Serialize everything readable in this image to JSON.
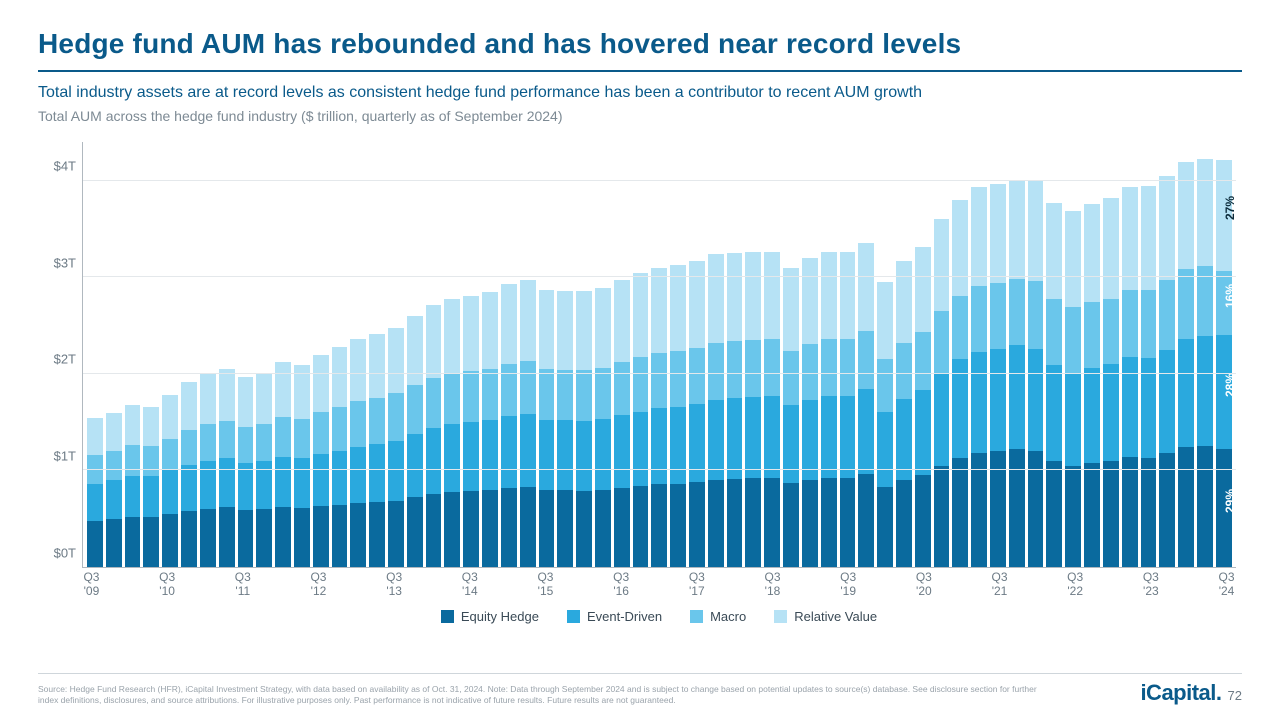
{
  "title": "Hedge fund AUM has rebounded and has hovered near record levels",
  "subtitle": "Total industry assets are at record levels as consistent hedge fund performance has been a contributor to recent AUM growth",
  "description": "Total AUM across the hedge fund industry ($ trillion, quarterly as of September 2024)",
  "chart": {
    "type": "stacked-bar",
    "ymax": 4.4,
    "yticks": [
      {
        "v": 0,
        "label": "$0T"
      },
      {
        "v": 1,
        "label": "$1T"
      },
      {
        "v": 2,
        "label": "$2T"
      },
      {
        "v": 3,
        "label": "$3T"
      },
      {
        "v": 4,
        "label": "$4T"
      }
    ],
    "series": [
      {
        "name": "Equity Hedge",
        "color": "#0a6a9e"
      },
      {
        "name": "Event-Driven",
        "color": "#2aa9de"
      },
      {
        "name": "Macro",
        "color": "#6ac6eb"
      },
      {
        "name": "Relative Value",
        "color": "#b6e2f5"
      }
    ],
    "data": [
      {
        "x": "Q3 '09",
        "v": [
          0.48,
          0.38,
          0.3,
          0.38
        ]
      },
      {
        "x": "Q4 '09",
        "v": [
          0.5,
          0.4,
          0.3,
          0.4
        ]
      },
      {
        "x": "Q1 '10",
        "v": [
          0.52,
          0.42,
          0.32,
          0.42
        ]
      },
      {
        "x": "Q2 '10",
        "v": [
          0.52,
          0.42,
          0.31,
          0.41
        ]
      },
      {
        "x": "Q3 '10",
        "v": [
          0.55,
          0.45,
          0.33,
          0.45
        ]
      },
      {
        "x": "Q4 '10",
        "v": [
          0.58,
          0.48,
          0.36,
          0.5
        ]
      },
      {
        "x": "Q1 '11",
        "v": [
          0.6,
          0.5,
          0.38,
          0.52
        ]
      },
      {
        "x": "Q2 '11",
        "v": [
          0.62,
          0.51,
          0.38,
          0.54
        ]
      },
      {
        "x": "Q3 '11",
        "v": [
          0.59,
          0.49,
          0.37,
          0.52
        ]
      },
      {
        "x": "Q4 '11",
        "v": [
          0.6,
          0.5,
          0.38,
          0.53
        ]
      },
      {
        "x": "Q1 '12",
        "v": [
          0.62,
          0.52,
          0.41,
          0.57
        ]
      },
      {
        "x": "Q2 '12",
        "v": [
          0.61,
          0.52,
          0.4,
          0.56
        ]
      },
      {
        "x": "Q3 '12",
        "v": [
          0.63,
          0.54,
          0.44,
          0.59
        ]
      },
      {
        "x": "Q4 '12",
        "v": [
          0.64,
          0.56,
          0.46,
          0.62
        ]
      },
      {
        "x": "Q1 '13",
        "v": [
          0.66,
          0.58,
          0.48,
          0.64
        ]
      },
      {
        "x": "Q2 '13",
        "v": [
          0.67,
          0.6,
          0.48,
          0.66
        ]
      },
      {
        "x": "Q3 '13",
        "v": [
          0.68,
          0.62,
          0.5,
          0.68
        ]
      },
      {
        "x": "Q4 '13",
        "v": [
          0.72,
          0.66,
          0.5,
          0.72
        ]
      },
      {
        "x": "Q1 '14",
        "v": [
          0.76,
          0.68,
          0.52,
          0.75
        ]
      },
      {
        "x": "Q2 '14",
        "v": [
          0.78,
          0.7,
          0.52,
          0.77
        ]
      },
      {
        "x": "Q3 '14",
        "v": [
          0.79,
          0.71,
          0.53,
          0.78
        ]
      },
      {
        "x": "Q4 '14",
        "v": [
          0.8,
          0.72,
          0.53,
          0.8
        ]
      },
      {
        "x": "Q1 '15",
        "v": [
          0.82,
          0.74,
          0.54,
          0.83
        ]
      },
      {
        "x": "Q2 '15",
        "v": [
          0.83,
          0.75,
          0.55,
          0.84
        ]
      },
      {
        "x": "Q3 '15",
        "v": [
          0.8,
          0.72,
          0.53,
          0.82
        ]
      },
      {
        "x": "Q4 '15",
        "v": [
          0.8,
          0.72,
          0.52,
          0.82
        ]
      },
      {
        "x": "Q1 '16",
        "v": [
          0.79,
          0.72,
          0.53,
          0.82
        ]
      },
      {
        "x": "Q2 '16",
        "v": [
          0.8,
          0.73,
          0.53,
          0.83
        ]
      },
      {
        "x": "Q3 '16",
        "v": [
          0.82,
          0.75,
          0.55,
          0.85
        ]
      },
      {
        "x": "Q4 '16",
        "v": [
          0.84,
          0.77,
          0.56,
          0.87
        ]
      },
      {
        "x": "Q1 '17",
        "v": [
          0.86,
          0.79,
          0.57,
          0.88
        ]
      },
      {
        "x": "Q2 '17",
        "v": [
          0.86,
          0.8,
          0.58,
          0.89
        ]
      },
      {
        "x": "Q3 '17",
        "v": [
          0.88,
          0.81,
          0.58,
          0.9
        ]
      },
      {
        "x": "Q4 '17",
        "v": [
          0.9,
          0.83,
          0.59,
          0.92
        ]
      },
      {
        "x": "Q1 '18",
        "v": [
          0.91,
          0.84,
          0.59,
          0.91
        ]
      },
      {
        "x": "Q2 '18",
        "v": [
          0.92,
          0.84,
          0.59,
          0.91
        ]
      },
      {
        "x": "Q3 '18",
        "v": [
          0.92,
          0.85,
          0.59,
          0.9
        ]
      },
      {
        "x": "Q4 '18",
        "v": [
          0.87,
          0.81,
          0.56,
          0.86
        ]
      },
      {
        "x": "Q1 '19",
        "v": [
          0.9,
          0.83,
          0.58,
          0.89
        ]
      },
      {
        "x": "Q2 '19",
        "v": [
          0.92,
          0.85,
          0.59,
          0.9
        ]
      },
      {
        "x": "Q3 '19",
        "v": [
          0.92,
          0.85,
          0.59,
          0.9
        ]
      },
      {
        "x": "Q4 '19",
        "v": [
          0.96,
          0.88,
          0.6,
          0.91
        ]
      },
      {
        "x": "Q1 '20",
        "v": [
          0.83,
          0.77,
          0.55,
          0.8
        ]
      },
      {
        "x": "Q2 '20",
        "v": [
          0.9,
          0.84,
          0.58,
          0.85
        ]
      },
      {
        "x": "Q3 '20",
        "v": [
          0.95,
          0.88,
          0.6,
          0.88
        ]
      },
      {
        "x": "Q4 '20",
        "v": [
          1.05,
          0.96,
          0.64,
          0.95
        ]
      },
      {
        "x": "Q1 '21",
        "v": [
          1.13,
          1.02,
          0.66,
          0.99
        ]
      },
      {
        "x": "Q2 '21",
        "v": [
          1.18,
          1.05,
          0.68,
          1.02
        ]
      },
      {
        "x": "Q3 '21",
        "v": [
          1.2,
          1.06,
          0.68,
          1.03
        ]
      },
      {
        "x": "Q4 '21",
        "v": [
          1.22,
          1.08,
          0.68,
          1.03
        ]
      },
      {
        "x": "Q1 '22",
        "v": [
          1.2,
          1.06,
          0.7,
          1.04
        ]
      },
      {
        "x": "Q2 '22",
        "v": [
          1.1,
          0.99,
          0.68,
          1.0
        ]
      },
      {
        "x": "Q3 '22",
        "v": [
          1.05,
          0.96,
          0.68,
          1.0
        ]
      },
      {
        "x": "Q4 '22",
        "v": [
          1.08,
          0.98,
          0.68,
          1.02
        ]
      },
      {
        "x": "Q1 '23",
        "v": [
          1.1,
          1.0,
          0.68,
          1.04
        ]
      },
      {
        "x": "Q2 '23",
        "v": [
          1.14,
          1.03,
          0.7,
          1.06
        ]
      },
      {
        "x": "Q3 '23",
        "v": [
          1.13,
          1.03,
          0.71,
          1.07
        ]
      },
      {
        "x": "Q4 '23",
        "v": [
          1.18,
          1.07,
          0.72,
          1.08
        ]
      },
      {
        "x": "Q1 '24",
        "v": [
          1.24,
          1.12,
          0.73,
          1.1
        ]
      },
      {
        "x": "Q2 '24",
        "v": [
          1.25,
          1.14,
          0.73,
          1.1
        ]
      },
      {
        "x": "Q3 '24",
        "v": [
          1.22,
          1.18,
          0.67,
          1.14
        ]
      }
    ],
    "xtick_indices": [
      0,
      4,
      8,
      12,
      16,
      20,
      24,
      28,
      32,
      36,
      40,
      44,
      48,
      52,
      56,
      60
    ],
    "last_bar_labels": [
      {
        "text": "29%",
        "series": 0
      },
      {
        "text": "28%",
        "series": 1
      },
      {
        "text": "16%",
        "series": 2
      },
      {
        "text": "27%",
        "series": 3
      }
    ]
  },
  "legend_labels": [
    "Equity Hedge",
    "Event-Driven",
    "Macro",
    "Relative Value"
  ],
  "footer": {
    "disclaimer": "Source: Hedge Fund Research (HFR), iCapital Investment Strategy, with data based on availability as of Oct. 31, 2024. Note: Data through September 2024 and is subject to change based on potential updates to source(s) database. See disclosure section for further index definitions, disclosures, and source attributions. For illustrative purposes only. Past performance is not indicative of future results. Future results are not guaranteed.",
    "brand": "iCapital",
    "page": "72"
  }
}
